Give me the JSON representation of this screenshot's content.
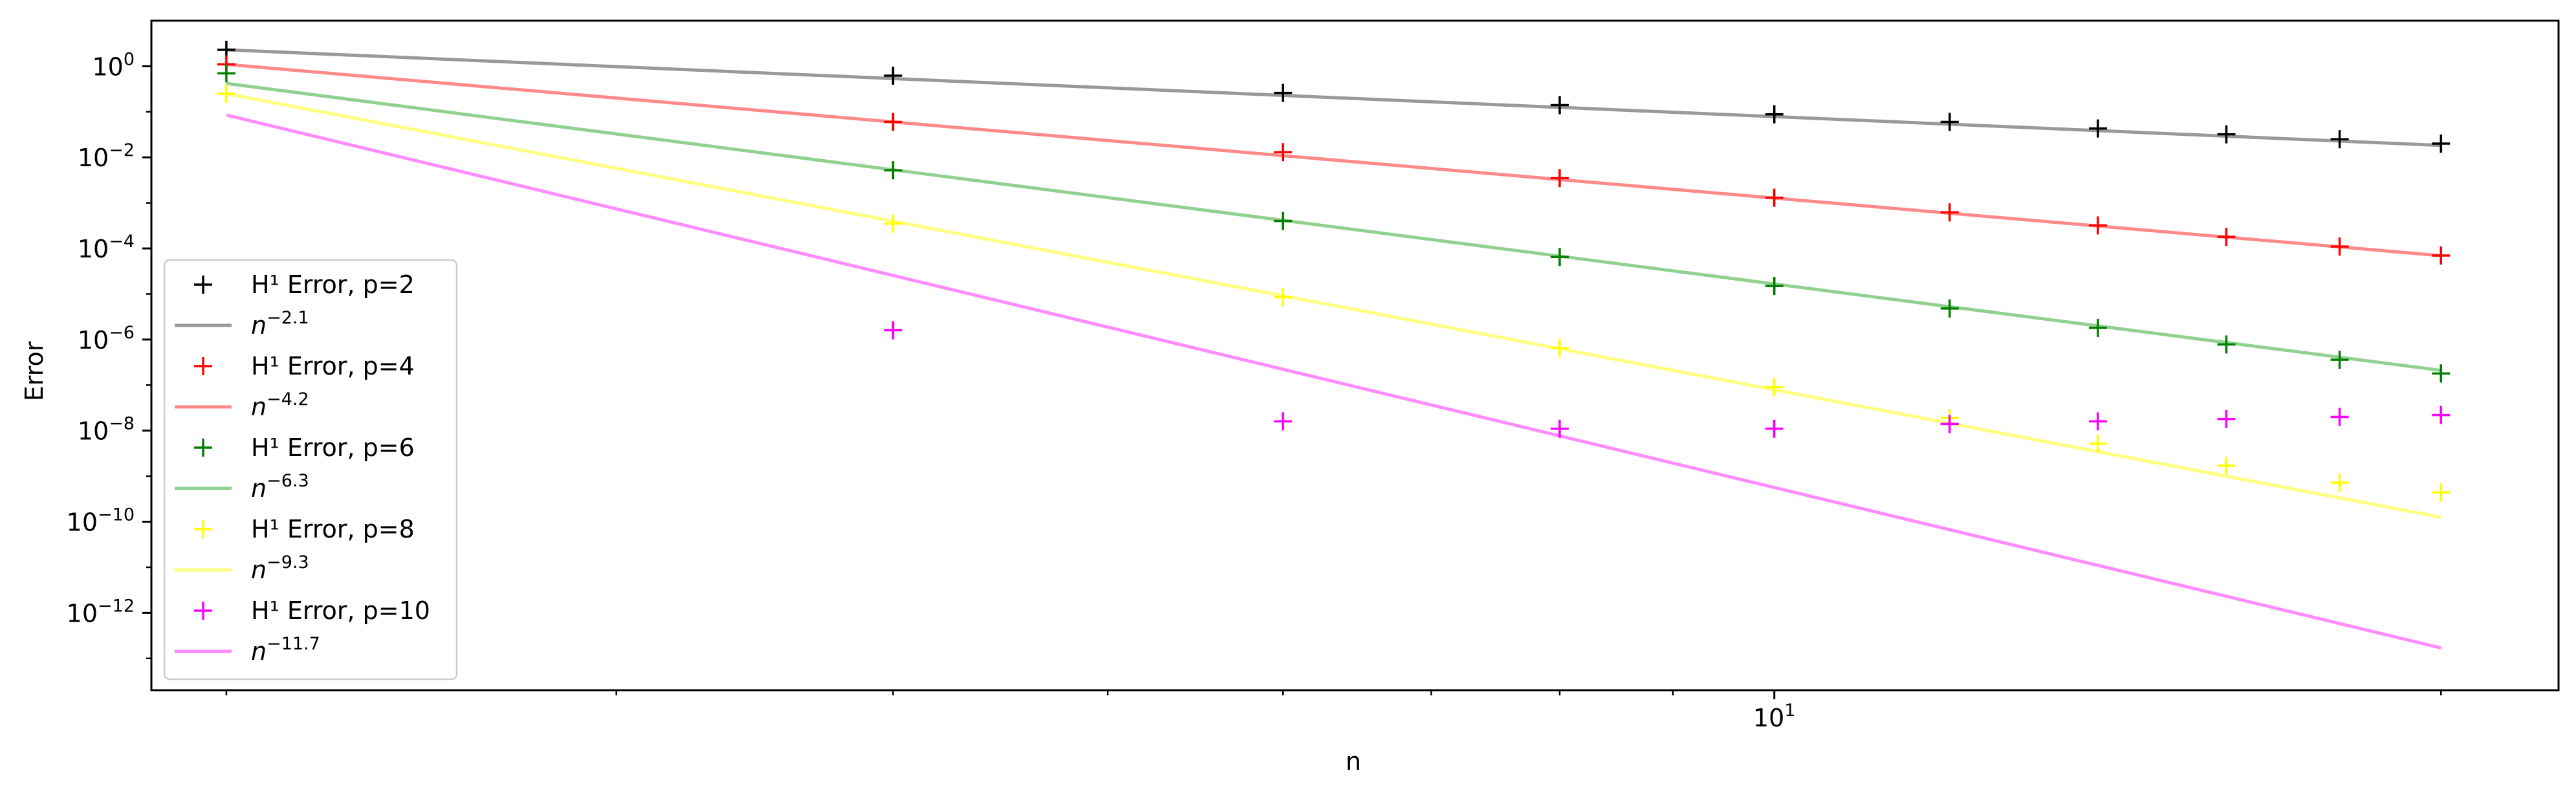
{
  "chart_data": {
    "type": "scatter",
    "xlabel": "n",
    "ylabel": "Error",
    "xscale": "log",
    "yscale": "log",
    "xlim": [
      1.85,
      22.6
    ],
    "ylim": [
      2e-14,
      10
    ],
    "x_ticks": [
      {
        "value": 10,
        "label": "1",
        "exp": "1"
      }
    ],
    "y_ticks": [
      {
        "value": 1,
        "label": "10",
        "exp": "0"
      },
      {
        "value": 0.01,
        "label": "10",
        "exp": "−2"
      },
      {
        "value": 0.0001,
        "label": "10",
        "exp": "−4"
      },
      {
        "value": 1e-06,
        "label": "10",
        "exp": "−6"
      },
      {
        "value": 1e-08,
        "label": "10",
        "exp": "−8"
      },
      {
        "value": 1e-10,
        "label": "10",
        "exp": "−10"
      },
      {
        "value": 1e-12,
        "label": "10",
        "exp": "−12"
      }
    ],
    "grid": false,
    "legend_position": "lower-left",
    "x": [
      2,
      4,
      6,
      8,
      10,
      12,
      14,
      16,
      18,
      20
    ],
    "series": [
      {
        "name": "H¹ Error, p=2",
        "kind": "markers",
        "marker": "+",
        "color": "#000000",
        "values": [
          2,
          [
            4,
            0.62
          ],
          [
            6,
            0.26
          ],
          [
            8,
            0.14
          ],
          [
            10,
            0.088
          ],
          [
            12,
            0.06
          ],
          [
            14,
            0.043
          ],
          [
            16,
            0.032
          ],
          [
            18,
            0.025
          ],
          [
            20,
            0.02
          ]
        ]
      },
      {
        "name": "n",
        "sup": "−2.1",
        "kind": "line",
        "color": "#999999",
        "exponent": -2.1,
        "x_range": [
          2,
          20
        ],
        "y_at_2": 2.3
      },
      {
        "name": "H¹ Error, p=4",
        "kind": "markers",
        "marker": "+",
        "color": "#ff0000",
        "values": [
          [
            2,
            1.1
          ],
          [
            4,
            0.06
          ],
          [
            6,
            0.013
          ],
          [
            8,
            0.0035
          ],
          [
            10,
            0.0013
          ],
          [
            12,
            0.00062
          ],
          [
            14,
            0.00032
          ],
          [
            16,
            0.00018
          ],
          [
            18,
            0.00011
          ],
          [
            20,
            7e-05
          ]
        ]
      },
      {
        "name": "n",
        "sup": "−4.2",
        "kind": "line",
        "color": "#ff8a8a",
        "exponent": -4.2,
        "x_range": [
          2,
          20
        ],
        "y_at_2": 1.1
      },
      {
        "name": "H¹ Error, p=6",
        "kind": "markers",
        "marker": "+",
        "color": "#008000",
        "values": [
          [
            2,
            0.7
          ],
          [
            4,
            0.0052
          ],
          [
            6,
            0.0004
          ],
          [
            8,
            6.5e-05
          ],
          [
            10,
            1.5e-05
          ],
          [
            12,
            4.8e-06
          ],
          [
            14,
            1.8e-06
          ],
          [
            16,
            7.8e-07
          ],
          [
            18,
            3.6e-07
          ],
          [
            20,
            1.8e-07
          ]
        ]
      },
      {
        "name": "n",
        "sup": "−6.3",
        "kind": "line",
        "color": "#90d090",
        "exponent": -6.3,
        "x_range": [
          2,
          20
        ],
        "y_at_2": 0.42
      },
      {
        "name": "H¹ Error, p=8",
        "kind": "markers",
        "marker": "+",
        "color": "#ffff00",
        "values": [
          [
            2,
            0.25
          ],
          [
            4,
            0.00035
          ],
          [
            6,
            8.5e-06
          ],
          [
            8,
            6.5e-07
          ],
          [
            10,
            9e-08
          ],
          [
            12,
            1.9e-08
          ],
          [
            14,
            5.2e-09
          ],
          [
            16,
            1.7e-09
          ],
          [
            18,
            7.2e-10
          ],
          [
            20,
            4.4e-10
          ]
        ]
      },
      {
        "name": "n",
        "sup": "−9.3",
        "kind": "line",
        "color": "#ffff80",
        "exponent": -9.3,
        "x_range": [
          2,
          20
        ],
        "y_at_2": 0.25
      },
      {
        "name": "H¹ Error, p=10",
        "kind": "markers",
        "marker": "+",
        "color": "#ff00ff",
        "values": [
          [
            4,
            1.6e-06
          ],
          [
            6,
            1.6e-08
          ],
          [
            8,
            1.1e-08
          ],
          [
            10,
            1.1e-08
          ],
          [
            12,
            1.4e-08
          ],
          [
            14,
            1.6e-08
          ],
          [
            16,
            1.8e-08
          ],
          [
            18,
            2e-08
          ],
          [
            20,
            2.2e-08
          ]
        ]
      },
      {
        "name": "n",
        "sup": "−11.7",
        "kind": "line",
        "color": "#ff8cff",
        "exponent": -11.7,
        "x_range": [
          2,
          20
        ],
        "y_at_2": 0.085
      }
    ]
  }
}
